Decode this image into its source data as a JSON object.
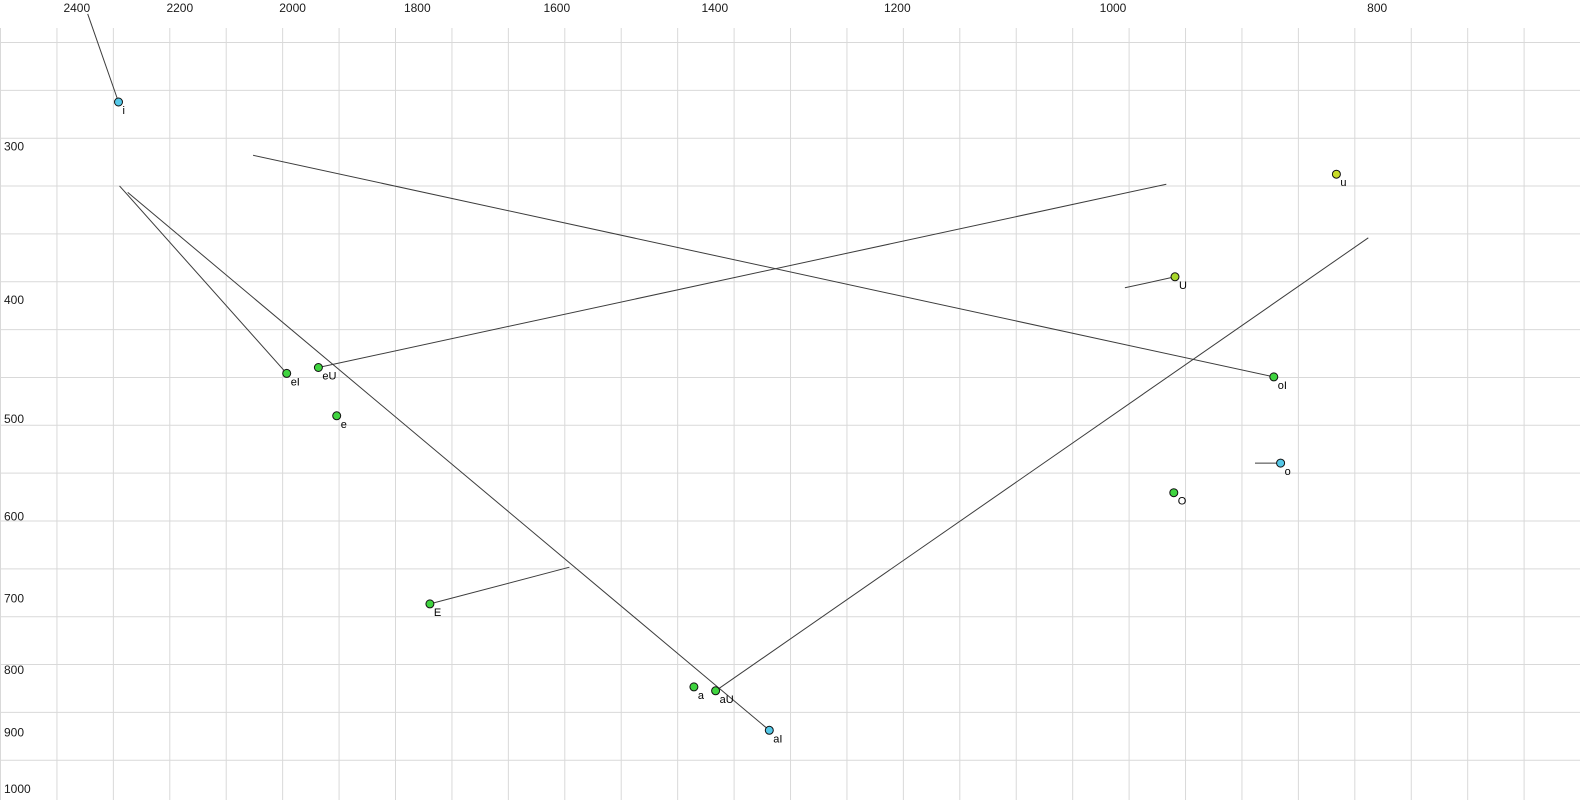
{
  "chart_data": {
    "type": "scatter",
    "title": "",
    "x_axis": {
      "tick_labels": [
        "2400",
        "2200",
        "2000",
        "1800",
        "1600",
        "1400",
        "1200",
        "1000",
        "800"
      ],
      "tick_values": [
        2400,
        2200,
        2000,
        1800,
        1600,
        1400,
        1200,
        1000,
        800
      ],
      "scale": "log10",
      "direction": "decreasing-rightward",
      "domain": [
        2561,
        674
      ]
    },
    "y_axis": {
      "tick_labels": [
        "300",
        "400",
        "500",
        "600",
        "700",
        "800",
        "900",
        "1000"
      ],
      "tick_values": [
        300,
        400,
        500,
        600,
        700,
        800,
        900,
        1000
      ],
      "scale": "log10",
      "direction": "increasing-downward",
      "domain": [
        228,
        1021
      ]
    },
    "grid": {
      "on": true,
      "color": "#d9d9d9"
    },
    "points": [
      {
        "label": "i",
        "f2": 2317,
        "f1": 276,
        "color": "#55c8e8",
        "glide": {
          "f2": 2378,
          "f1": 234
        }
      },
      {
        "label": "u",
        "f2": 828,
        "f1": 316,
        "color": "#c9dc28"
      },
      {
        "label": "U",
        "f2": 949,
        "f1": 383,
        "color": "#a8d82a",
        "glide": {
          "f2": 990,
          "f1": 391
        }
      },
      {
        "label": "eI",
        "f2": 2010,
        "f1": 459,
        "color": "#3fd43f",
        "glide": {
          "f2": 2315,
          "f1": 323
        }
      },
      {
        "label": "eU",
        "f2": 1957,
        "f1": 454,
        "color": "#3fd43f",
        "glide": {
          "f2": 956,
          "f1": 322
        }
      },
      {
        "label": "e",
        "f2": 1927,
        "f1": 497,
        "color": "#3fd43f"
      },
      {
        "label": "oI",
        "f2": 873,
        "f1": 462,
        "color": "#3fd43f",
        "glide": {
          "f2": 2068,
          "f1": 305
        }
      },
      {
        "label": "o",
        "f2": 868,
        "f1": 543,
        "color": "#55c8e8",
        "glide": {
          "f2": 887,
          "f1": 543
        }
      },
      {
        "label": "O",
        "f2": 950,
        "f1": 574,
        "color": "#3fd43f"
      },
      {
        "label": "E",
        "f2": 1781,
        "f1": 707,
        "color": "#3fd43f",
        "glide": {
          "f2": 1583,
          "f1": 660
        }
      },
      {
        "label": "a",
        "f2": 1425,
        "f1": 826,
        "color": "#3fd43f"
      },
      {
        "label": "aU",
        "f2": 1399,
        "f1": 832,
        "color": "#3fd43f",
        "glide": {
          "f2": 806,
          "f1": 356
        }
      },
      {
        "label": "aI",
        "f2": 1337,
        "f1": 896,
        "color": "#55c8e8",
        "glide": {
          "f2": 2299,
          "f1": 327
        }
      }
    ],
    "colors": {
      "background": "#ffffff",
      "grid": "#d9d9d9",
      "trajectory": "#3c3c3c",
      "point_stroke": "#111111",
      "tick_label": "#1a1a1a",
      "point_label": "#000000"
    }
  }
}
